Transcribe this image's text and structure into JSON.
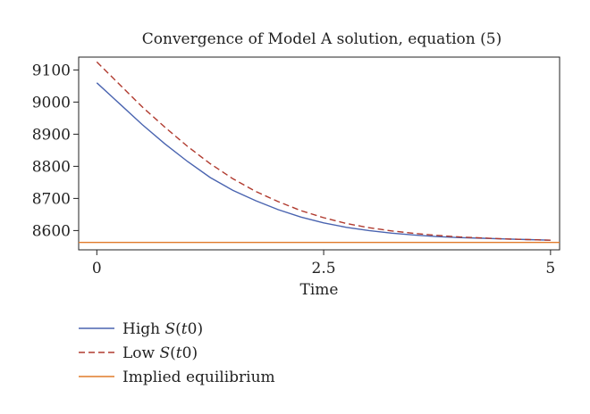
{
  "chart_data": {
    "type": "line",
    "title": "Convergence of Model A solution, equation (5)",
    "xlabel": "Time",
    "ylabel": "",
    "xlim": [
      -0.2,
      5.1
    ],
    "ylim": [
      8540,
      9140
    ],
    "x_ticks": [
      0,
      2.5,
      5
    ],
    "x_tick_labels": [
      "0",
      "2.5",
      "5"
    ],
    "y_ticks": [
      8600,
      8700,
      8800,
      8900,
      9000,
      9100
    ],
    "y_tick_labels": [
      "8600",
      "8700",
      "8800",
      "8900",
      "9000",
      "9100"
    ],
    "grid": false,
    "legend_position": "below-left",
    "series": [
      {
        "name": "High S(t0)",
        "legend_parts": [
          "High ",
          "S",
          "(",
          "t",
          "0)"
        ],
        "color": "#4a64b0",
        "style": "solid",
        "x": [
          0,
          0.25,
          0.5,
          0.75,
          1.0,
          1.25,
          1.5,
          1.75,
          2.0,
          2.25,
          2.5,
          2.75,
          3.0,
          3.25,
          3.5,
          3.75,
          4.0,
          4.25,
          4.5,
          4.75,
          5.0
        ],
        "y": [
          9060,
          8995,
          8930,
          8870,
          8815,
          8765,
          8725,
          8693,
          8665,
          8642,
          8624,
          8610,
          8600,
          8592,
          8586,
          8581,
          8578,
          8576,
          8574,
          8572,
          8570
        ]
      },
      {
        "name": "Low S(t0)",
        "legend_parts": [
          "Low ",
          "S",
          "(",
          "t",
          "0)"
        ],
        "color": "#b03a2e",
        "style": "dashed",
        "x": [
          0,
          0.25,
          0.5,
          0.75,
          1.0,
          1.25,
          1.5,
          1.75,
          2.0,
          2.25,
          2.5,
          2.75,
          3.0,
          3.25,
          3.5,
          3.75,
          4.0,
          4.25,
          4.5,
          4.75,
          5.0
        ],
        "y": [
          9125,
          9055,
          8985,
          8922,
          8862,
          8808,
          8761,
          8722,
          8690,
          8662,
          8640,
          8622,
          8609,
          8599,
          8591,
          8585,
          8580,
          8577,
          8574,
          8572,
          8570
        ]
      },
      {
        "name": "Implied equilibrium",
        "legend_parts": [
          "Implied equilibrium"
        ],
        "color": "#e07b2a",
        "style": "solid",
        "x": [
          -0.2,
          5.1
        ],
        "y": [
          8563,
          8563
        ]
      }
    ]
  }
}
